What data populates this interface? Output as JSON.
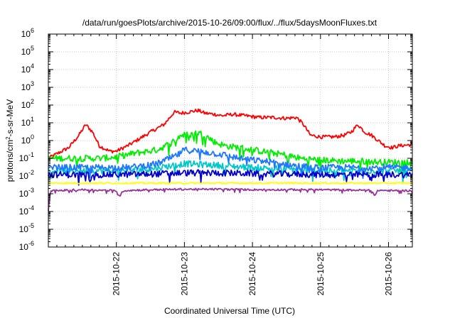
{
  "chart_data": {
    "type": "line",
    "title": "/data/run/goesPlots/archive/2015-10-26/09:00/flux/../flux/5daysMoonFluxes.txt",
    "ylabel_parts": [
      "protons/cm",
      "2",
      "-s-sr-MeV"
    ],
    "xlabel": "Coordinated Universal Time (UTC)",
    "yscale": "log",
    "ylim_exponent": [
      -6,
      6
    ],
    "y_ticks": [
      {
        "base": "10",
        "exp": "-6"
      },
      {
        "base": "10",
        "exp": "-5"
      },
      {
        "base": "10",
        "exp": "-4"
      },
      {
        "base": "10",
        "exp": "-3"
      },
      {
        "base": "10",
        "exp": "-2"
      },
      {
        "base": "10",
        "exp": "-1"
      },
      {
        "base": "10",
        "exp": "0"
      },
      {
        "base": "10",
        "exp": "1"
      },
      {
        "base": "10",
        "exp": "2"
      },
      {
        "base": "10",
        "exp": "3"
      },
      {
        "base": "10",
        "exp": "4"
      },
      {
        "base": "10",
        "exp": "5"
      },
      {
        "base": "10",
        "exp": "6"
      }
    ],
    "xlim_days": [
      -1.0,
      4.35
    ],
    "x_ticks": [
      "2015-10-22",
      "2015-10-23",
      "2015-10-24",
      "2015-10-25",
      "2015-10-26"
    ],
    "grid": true,
    "legend": "none",
    "series": [
      {
        "color": "#ff0000",
        "x": [
          -1.0,
          -0.85,
          -0.7,
          -0.55,
          -0.45,
          -0.35,
          -0.25,
          -0.1,
          0.0,
          0.2,
          0.5,
          0.7,
          0.85,
          0.95,
          1.05,
          1.2,
          1.3,
          1.45,
          1.55,
          1.7,
          1.9,
          2.1,
          2.3,
          2.5,
          2.65,
          2.75,
          2.85,
          3.0,
          3.2,
          3.35,
          3.45,
          3.55,
          3.65,
          3.75,
          3.85,
          3.95,
          4.05,
          4.15,
          4.25,
          4.35
        ],
        "y": [
          0.1,
          0.2,
          0.4,
          2,
          8,
          3,
          0.5,
          0.25,
          0.25,
          0.6,
          3,
          8,
          40,
          35,
          40,
          50,
          35,
          30,
          25,
          30,
          25,
          20,
          20,
          18,
          20,
          8,
          2,
          1.6,
          1.6,
          2,
          3,
          8,
          3,
          2,
          1,
          0.5,
          0.4,
          0.5,
          0.55,
          0.6
        ]
      },
      {
        "color": "#00ee00",
        "x": [
          -1.0,
          -0.7,
          -0.4,
          -0.2,
          0.0,
          0.3,
          0.6,
          0.8,
          0.95,
          1.1,
          1.2,
          1.3,
          1.45,
          1.6,
          1.8,
          2.0,
          2.3,
          2.5,
          2.7,
          3.0,
          3.3,
          3.6,
          3.9,
          4.2,
          4.35
        ],
        "y": [
          0.1,
          0.1,
          0.1,
          0.1,
          0.12,
          0.2,
          0.3,
          0.7,
          2,
          2.2,
          2.8,
          2,
          0.8,
          0.5,
          0.4,
          0.3,
          0.2,
          0.15,
          0.1,
          0.08,
          0.07,
          0.07,
          0.06,
          0.06,
          0.07
        ]
      },
      {
        "color": "#00c8c8",
        "x": [
          -1.0,
          -0.5,
          0.0,
          0.5,
          1.0,
          1.5,
          2.0,
          2.5,
          3.0,
          3.5,
          4.0,
          4.35
        ],
        "y": [
          0.02,
          0.02,
          0.02,
          0.025,
          0.05,
          0.04,
          0.03,
          0.025,
          0.02,
          0.02,
          0.02,
          0.02
        ]
      },
      {
        "color": "#1e78ff",
        "x": [
          -1.0,
          -0.6,
          -0.2,
          0.2,
          0.6,
          0.9,
          1.0,
          1.2,
          1.4,
          1.6,
          1.8,
          2.0,
          2.3,
          2.6,
          2.9,
          3.2,
          3.6,
          4.0,
          4.35
        ],
        "y": [
          0.03,
          0.03,
          0.03,
          0.03,
          0.05,
          0.15,
          0.3,
          0.25,
          0.2,
          0.15,
          0.1,
          0.08,
          0.06,
          0.04,
          0.03,
          0.03,
          0.03,
          0.03,
          0.03
        ]
      },
      {
        "color": "#0000cd",
        "x": [
          -1.0,
          -0.5,
          0.0,
          0.5,
          1.0,
          1.5,
          2.0,
          2.5,
          3.0,
          3.5,
          4.0,
          4.35
        ],
        "y": [
          0.012,
          0.012,
          0.012,
          0.013,
          0.015,
          0.015,
          0.014,
          0.013,
          0.012,
          0.012,
          0.012,
          0.012
        ]
      },
      {
        "color": "#ffff00",
        "x": [
          -1.0,
          -0.5,
          0.0,
          0.5,
          1.0,
          1.5,
          2.0,
          2.5,
          3.0,
          3.5,
          4.0,
          4.35
        ],
        "y": [
          0.004,
          0.004,
          0.004,
          0.004,
          0.004,
          0.004,
          0.004,
          0.004,
          0.004,
          0.004,
          0.004,
          0.004
        ]
      },
      {
        "color": "#993399",
        "x": [
          -1.0,
          -0.97,
          -0.9,
          -0.5,
          0.0,
          0.05,
          0.1,
          0.5,
          1.0,
          1.5,
          2.0,
          2.5,
          3.0,
          3.5,
          3.75,
          3.8,
          3.85,
          4.0,
          4.35
        ],
        "y": [
          0.0001,
          0.0015,
          0.0015,
          0.0017,
          0.0015,
          0.0007,
          0.0015,
          0.0017,
          0.0018,
          0.0018,
          0.0017,
          0.0017,
          0.0017,
          0.0016,
          0.0016,
          0.0008,
          0.0016,
          0.0015,
          0.0015
        ]
      }
    ]
  }
}
